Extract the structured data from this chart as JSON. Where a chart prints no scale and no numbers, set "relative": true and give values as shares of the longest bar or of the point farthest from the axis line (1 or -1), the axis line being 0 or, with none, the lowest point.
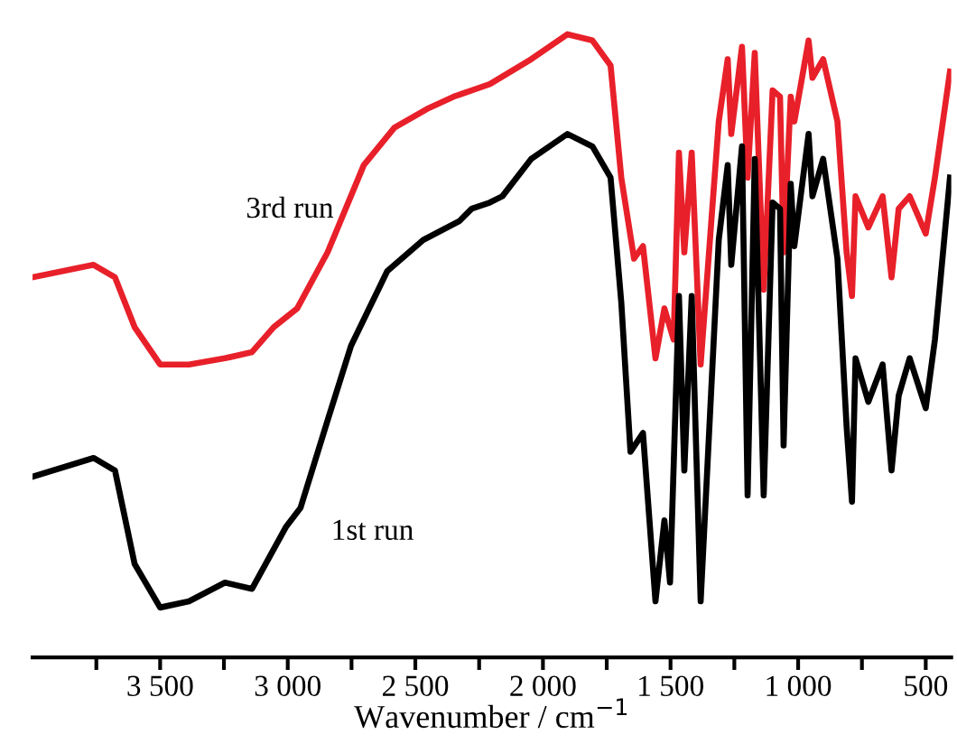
{
  "chart_data": {
    "type": "line",
    "relative": true,
    "xlabel": "Wavenumber / cm$^{−1}$",
    "xlim": [
      4000,
      400
    ],
    "xticks": [
      {
        "value": 3750,
        "label": null
      },
      {
        "value": 3500,
        "label": "3 500"
      },
      {
        "value": 3250,
        "label": null
      },
      {
        "value": 3000,
        "label": "3 000"
      },
      {
        "value": 2750,
        "label": null
      },
      {
        "value": 2500,
        "label": "2 500"
      },
      {
        "value": 2250,
        "label": null
      },
      {
        "value": 2000,
        "label": "2 000"
      },
      {
        "value": 1750,
        "label": null
      },
      {
        "value": 1500,
        "label": "1 500"
      },
      {
        "value": 1250,
        "label": null
      },
      {
        "value": 1000,
        "label": "1 000"
      },
      {
        "value": 750,
        "label": null
      },
      {
        "value": 500,
        "label": "500"
      }
    ],
    "tick_labels": "x",
    "grid": false,
    "legend": false,
    "marker": "none",
    "line_style": "solid",
    "series": [
      {
        "name": "3rd run",
        "color": "#e8202a",
        "x": [
          4000,
          3761,
          3677,
          3600,
          3500,
          3387,
          3246,
          3140,
          3055,
          2963,
          2844,
          2702,
          2582,
          2455,
          2349,
          2279,
          2208,
          2046,
          1904,
          1806,
          1735,
          1693,
          1643,
          1608,
          1559,
          1524,
          1488,
          1467,
          1446,
          1417,
          1382,
          1311,
          1276,
          1262,
          1220,
          1198,
          1170,
          1135,
          1100,
          1071,
          1057,
          1029,
          1015,
          959,
          944,
          902,
          846,
          810,
          789,
          775,
          725,
          669,
          634,
          606,
          563,
          500,
          464,
          405
        ],
        "values": [
          0.61,
          0.63,
          0.61,
          0.53,
          0.47,
          0.47,
          0.48,
          0.49,
          0.53,
          0.56,
          0.65,
          0.79,
          0.85,
          0.88,
          0.9,
          0.91,
          0.92,
          0.96,
          1.0,
          0.99,
          0.95,
          0.77,
          0.64,
          0.66,
          0.48,
          0.56,
          0.51,
          0.81,
          0.65,
          0.81,
          0.47,
          0.86,
          0.96,
          0.84,
          0.98,
          0.77,
          0.97,
          0.59,
          0.91,
          0.9,
          0.65,
          0.9,
          0.86,
          0.99,
          0.93,
          0.96,
          0.86,
          0.65,
          0.58,
          0.74,
          0.69,
          0.74,
          0.61,
          0.72,
          0.74,
          0.68,
          0.77,
          0.94
        ]
      },
      {
        "name": "1st run",
        "color": "#000000",
        "x": [
          4000,
          3761,
          3677,
          3600,
          3500,
          3387,
          3246,
          3140,
          3006,
          2950,
          2844,
          2752,
          2610,
          2469,
          2328,
          2279,
          2208,
          2159,
          2046,
          1904,
          1806,
          1735,
          1693,
          1657,
          1608,
          1559,
          1524,
          1502,
          1467,
          1446,
          1417,
          1382,
          1311,
          1276,
          1262,
          1220,
          1198,
          1170,
          1135,
          1100,
          1071,
          1057,
          1029,
          1015,
          959,
          944,
          902,
          846,
          810,
          789,
          775,
          725,
          669,
          634,
          606,
          563,
          500,
          464,
          405
        ],
        "values": [
          0.29,
          0.32,
          0.3,
          0.15,
          0.08,
          0.09,
          0.12,
          0.11,
          0.21,
          0.24,
          0.38,
          0.5,
          0.62,
          0.67,
          0.7,
          0.72,
          0.73,
          0.74,
          0.8,
          0.84,
          0.82,
          0.77,
          0.57,
          0.33,
          0.36,
          0.09,
          0.22,
          0.12,
          0.58,
          0.3,
          0.58,
          0.09,
          0.67,
          0.79,
          0.63,
          0.82,
          0.26,
          0.8,
          0.26,
          0.73,
          0.72,
          0.34,
          0.76,
          0.66,
          0.84,
          0.74,
          0.8,
          0.64,
          0.37,
          0.25,
          0.48,
          0.41,
          0.47,
          0.3,
          0.42,
          0.48,
          0.4,
          0.51,
          0.77
        ]
      }
    ]
  }
}
